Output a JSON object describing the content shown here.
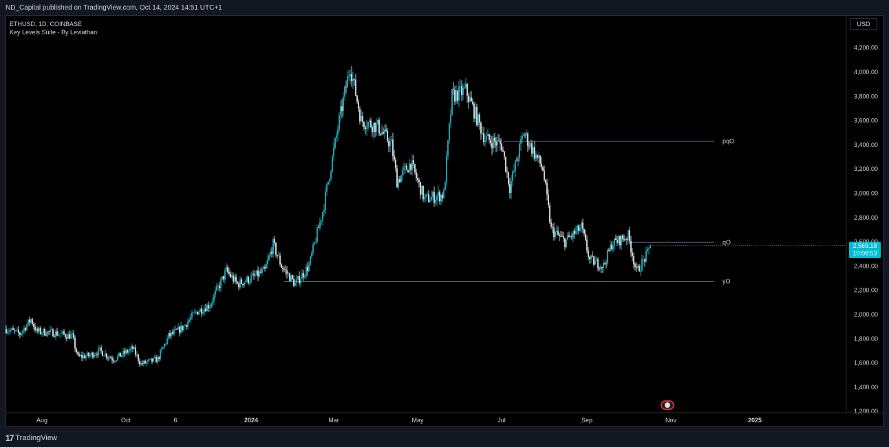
{
  "header": {
    "published": "ND_Capital published on TradingView.com, Oct 14, 2024 14:51 UTC+1"
  },
  "legend": {
    "symbol": "ETHUSD, 1D, COINBASE",
    "indicator": "Key Levels Suite - By Leviathan"
  },
  "currency": "USD",
  "price_tag": {
    "price": "2,569.18",
    "countdown": "10:08:53"
  },
  "footer": {
    "brand": "TradingView"
  },
  "colors": {
    "up": "#26c6da",
    "down": "#ffffff",
    "level_line": "#b39ddb",
    "yo_line": "#b2dfdb",
    "tag": "#00bcd4"
  },
  "chart_data": {
    "type": "candlestick",
    "symbol": "ETHUSD",
    "interval": "1D",
    "ylim": [
      1200,
      4300
    ],
    "y_ticks": [
      "4,200.00",
      "4,000.00",
      "3,800.00",
      "3,600.00",
      "3,400.00",
      "3,200.00",
      "3,000.00",
      "2,800.00",
      "2,600.00",
      "2,400.00",
      "2,200.00",
      "2,000.00",
      "1,800.00",
      "1,600.00",
      "1,400.00",
      "1,200.00"
    ],
    "x_ticks": [
      {
        "label": "Aug",
        "day": 26
      },
      {
        "label": "Oct",
        "day": 87
      },
      {
        "label": "6",
        "day": 123
      },
      {
        "label": "2024",
        "day": 178
      },
      {
        "label": "Mar",
        "day": 238
      },
      {
        "label": "May",
        "day": 299
      },
      {
        "label": "Jul",
        "day": 360
      },
      {
        "label": "Sep",
        "day": 422
      },
      {
        "label": "Nov",
        "day": 483
      },
      {
        "label": "2025",
        "day": 544
      }
    ],
    "price_path": [
      [
        0,
        1880
      ],
      [
        10,
        1840
      ],
      [
        18,
        1960
      ],
      [
        22,
        1860
      ],
      [
        34,
        1850
      ],
      [
        48,
        1820
      ],
      [
        52,
        1650
      ],
      [
        60,
        1660
      ],
      [
        68,
        1700
      ],
      [
        78,
        1630
      ],
      [
        92,
        1720
      ],
      [
        98,
        1590
      ],
      [
        110,
        1630
      ],
      [
        118,
        1820
      ],
      [
        128,
        1890
      ],
      [
        138,
        2020
      ],
      [
        148,
        2080
      ],
      [
        160,
        2360
      ],
      [
        168,
        2250
      ],
      [
        178,
        2300
      ],
      [
        188,
        2360
      ],
      [
        194,
        2580
      ],
      [
        200,
        2400
      ],
      [
        210,
        2250
      ],
      [
        220,
        2400
      ],
      [
        230,
        2850
      ],
      [
        242,
        3600
      ],
      [
        250,
        4050
      ],
      [
        258,
        3600
      ],
      [
        270,
        3550
      ],
      [
        280,
        3400
      ],
      [
        284,
        3100
      ],
      [
        294,
        3250
      ],
      [
        304,
        2950
      ],
      [
        318,
        2990
      ],
      [
        324,
        3800
      ],
      [
        334,
        3850
      ],
      [
        348,
        3450
      ],
      [
        360,
        3400
      ],
      [
        366,
        3050
      ],
      [
        376,
        3500
      ],
      [
        390,
        3200
      ],
      [
        396,
        2700
      ],
      [
        406,
        2600
      ],
      [
        418,
        2720
      ],
      [
        424,
        2450
      ],
      [
        434,
        2400
      ],
      [
        440,
        2580
      ],
      [
        452,
        2650
      ],
      [
        458,
        2350
      ],
      [
        466,
        2500
      ],
      [
        468,
        2569
      ]
    ],
    "levels": [
      {
        "name": "pqO",
        "price": 3430,
        "from_day": 362
      },
      {
        "name": "qO",
        "price": 2595,
        "from_day": 453
      },
      {
        "name": "yO",
        "price": 2275,
        "from_day": 202
      }
    ]
  }
}
